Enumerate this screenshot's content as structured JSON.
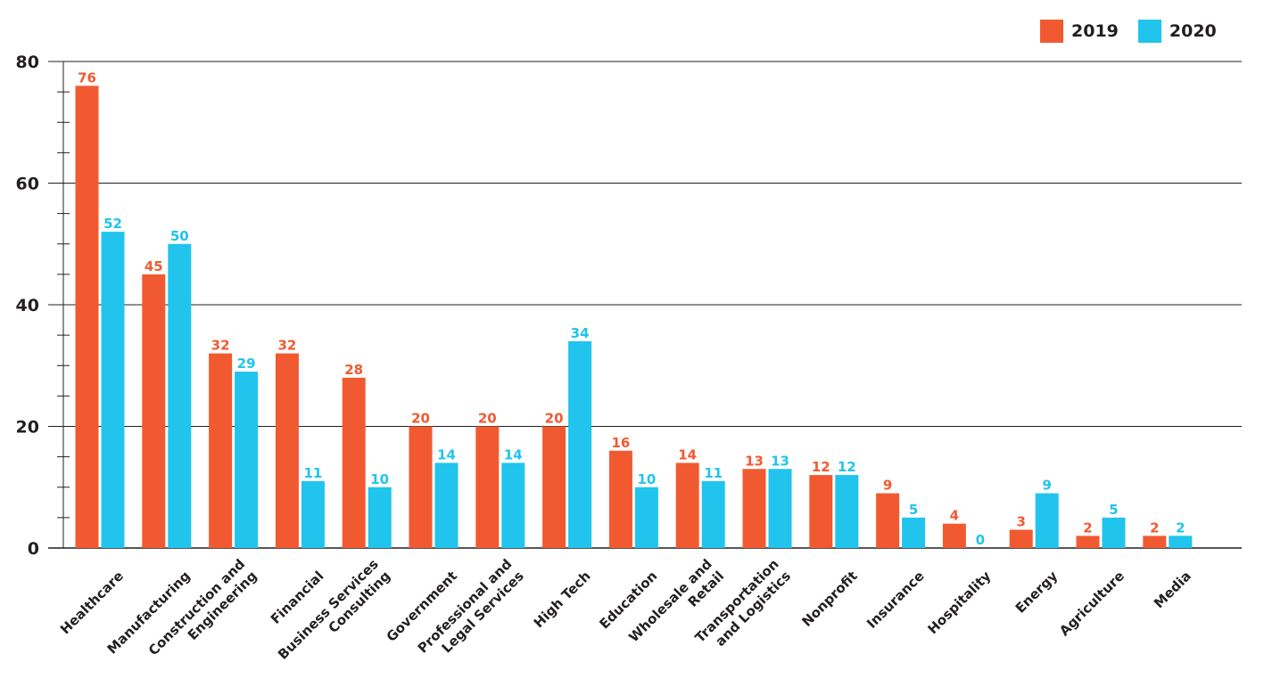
{
  "chart_data": {
    "type": "bar",
    "title": "",
    "xlabel": "",
    "ylabel": "",
    "ylim": [
      0,
      80
    ],
    "y_ticks": [
      "0",
      "20",
      "40",
      "60",
      "80"
    ],
    "grid": true,
    "legend_position": "top-right",
    "categories": [
      [
        "Healthcare"
      ],
      [
        "Manufacturing"
      ],
      [
        "Construction and",
        "Engineering"
      ],
      [
        "Financial"
      ],
      [
        "Business Services",
        "Consulting"
      ],
      [
        "Government"
      ],
      [
        "Professional and",
        "Legal Services"
      ],
      [
        "High Tech"
      ],
      [
        "Education"
      ],
      [
        "Wholesale and",
        "Retail"
      ],
      [
        "Transportation",
        "and Logistics"
      ],
      [
        "Nonprofit"
      ],
      [
        "Insurance"
      ],
      [
        "Hospitality"
      ],
      [
        "Energy"
      ],
      [
        "Agriculture"
      ],
      [
        "Media"
      ]
    ],
    "series": [
      {
        "name": "2019",
        "color": "#f15a31",
        "values": [
          76,
          45,
          32,
          32,
          28,
          20,
          20,
          20,
          16,
          14,
          13,
          12,
          9,
          4,
          3,
          2,
          2
        ]
      },
      {
        "name": "2020",
        "color": "#20c4ec",
        "values": [
          52,
          50,
          29,
          11,
          10,
          14,
          14,
          34,
          10,
          11,
          13,
          12,
          5,
          0,
          9,
          5,
          2
        ]
      }
    ]
  }
}
